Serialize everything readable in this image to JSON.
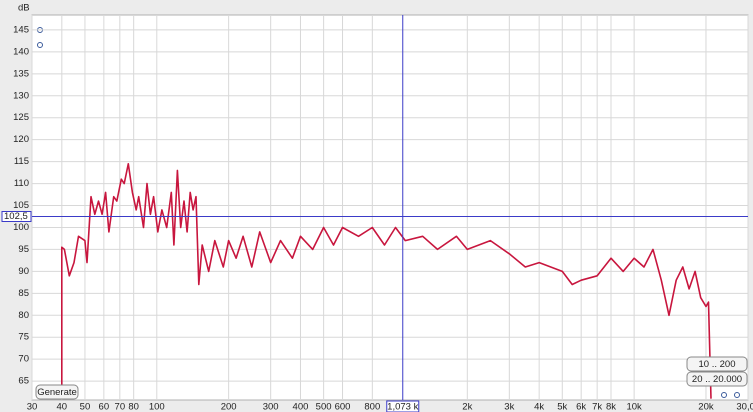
{
  "chart_data": {
    "type": "line",
    "y_axis_label": "dB",
    "xlim": [
      30,
      30000
    ],
    "ylim": [
      60.7,
      148.4
    ],
    "log_x": true,
    "grid": true,
    "xticks": [
      30,
      40,
      50,
      60,
      70,
      80,
      100,
      200,
      300,
      400,
      500,
      600,
      800,
      {
        "value": 2000,
        "label": "2k"
      },
      {
        "value": 3000,
        "label": "3k"
      },
      {
        "value": 4000,
        "label": "4k"
      },
      {
        "value": 5000,
        "label": "5k"
      },
      {
        "value": 6000,
        "label": "6k"
      },
      {
        "value": 7000,
        "label": "7k"
      },
      {
        "value": 8000,
        "label": "8k"
      },
      {
        "value": 10000,
        "label": "10k"
      },
      {
        "value": 20000,
        "label": "20k"
      },
      {
        "value": 30000,
        "label": "30,0k"
      }
    ],
    "yticks": [
      65,
      70,
      75,
      80,
      85,
      90,
      95,
      100,
      105,
      110,
      115,
      120,
      125,
      130,
      135,
      140,
      145
    ],
    "cursor": {
      "x": {
        "value": 1073,
        "label": "1,073 k"
      },
      "y": {
        "value": 102.5,
        "label": "102,5"
      },
      "color": "#3b3bc8"
    },
    "series": [
      {
        "color": "#c8163e",
        "x": [
          40,
          40,
          41,
          43,
          45,
          47,
          50,
          51,
          53,
          55,
          57,
          59,
          61,
          63,
          66,
          68,
          71,
          73,
          76,
          79,
          82,
          84,
          88,
          91,
          94,
          97,
          101,
          105,
          110,
          115,
          118,
          122,
          126,
          130,
          134,
          138,
          142,
          146,
          150,
          155,
          165,
          175,
          190,
          200,
          215,
          230,
          250,
          270,
          300,
          330,
          370,
          400,
          450,
          500,
          550,
          600,
          700,
          800,
          900,
          1000,
          1100,
          1300,
          1500,
          1800,
          2000,
          2500,
          3000,
          3500,
          4000,
          5000,
          5500,
          6000,
          7000,
          8000,
          9000,
          10000,
          11000,
          12000,
          13000,
          14000,
          15000,
          16000,
          17000,
          18000,
          19000,
          20000,
          20500,
          21000
        ],
        "values": [
          61,
          95.5,
          95,
          89,
          92,
          98,
          97,
          92,
          107,
          103,
          106,
          103,
          108,
          99,
          107,
          106,
          111,
          110,
          114.5,
          108,
          104,
          107,
          100,
          110,
          103,
          107,
          99,
          104,
          100,
          108,
          96,
          113,
          100,
          106,
          99,
          108,
          104,
          107,
          87,
          96,
          90,
          97,
          91,
          97,
          93,
          98,
          91,
          99,
          92,
          97,
          93,
          98,
          95,
          100,
          96,
          100,
          98,
          100,
          96,
          100,
          97,
          98,
          95,
          98,
          95,
          97,
          94,
          91,
          92,
          90,
          87,
          88,
          89,
          93,
          90,
          93,
          91,
          95,
          88,
          80,
          88,
          91,
          86,
          90,
          84,
          82,
          83,
          61
        ]
      }
    ],
    "buttons": [
      "Generate",
      "10 .. 200",
      "20 .. 20.000"
    ]
  }
}
